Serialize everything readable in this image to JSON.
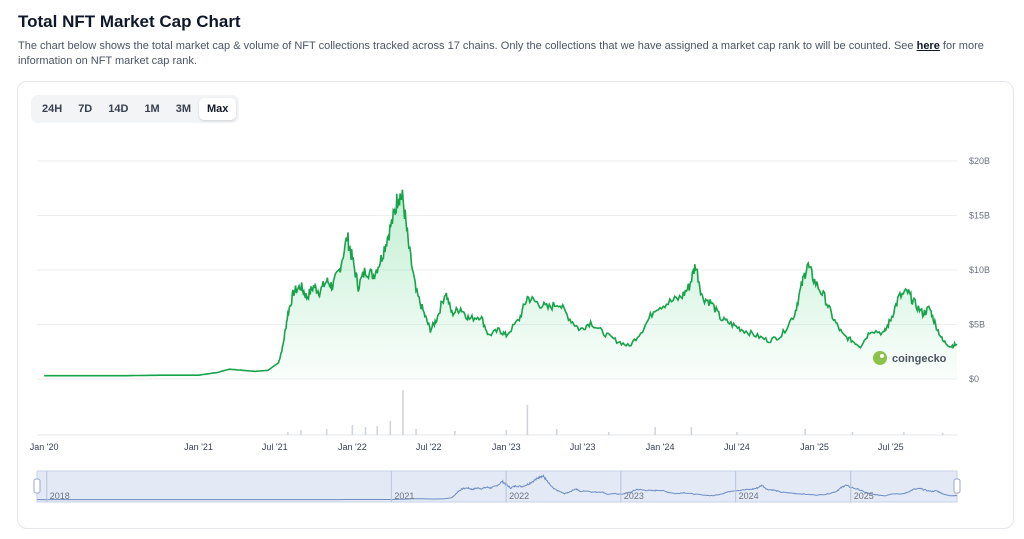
{
  "header": {
    "title": "Total NFT Market Cap Chart",
    "description": "The chart below shows the total market cap & volume of NFT collections tracked across 17 chains. Only the collections that we have assigned a market cap rank to will be counted. See",
    "link_text": "here",
    "description_tail": "for more information on NFT market cap rank."
  },
  "tabs": [
    {
      "label": "24H",
      "active": false
    },
    {
      "label": "7D",
      "active": false
    },
    {
      "label": "14D",
      "active": false
    },
    {
      "label": "1M",
      "active": false
    },
    {
      "label": "3M",
      "active": false
    },
    {
      "label": "Max",
      "active": true
    }
  ],
  "brand": {
    "name": "coingecko",
    "icon": "gecko-logo-icon"
  },
  "colors": {
    "line": "#16a34a",
    "fill": "#22c55e",
    "navigator": "#6d8ec4",
    "navigator_bg": "#e3e9f5"
  },
  "chart_data": {
    "type": "area",
    "series": [
      {
        "values": [
          [
            "2020-01-01",
            0.3
          ],
          [
            "2020-04-01",
            0.3
          ],
          [
            "2020-07-01",
            0.3
          ],
          [
            "2020-10-01",
            0.35
          ],
          [
            "2021-01-01",
            0.35
          ],
          [
            "2021-02-15",
            0.6
          ],
          [
            "2021-03-15",
            0.9
          ],
          [
            "2021-04-15",
            0.8
          ],
          [
            "2021-05-15",
            0.7
          ],
          [
            "2021-06-15",
            0.8
          ],
          [
            "2021-07-10",
            1.5
          ],
          [
            "2021-07-20",
            3
          ],
          [
            "2021-08-01",
            6
          ],
          [
            "2021-08-15",
            8
          ],
          [
            "2021-09-01",
            8.5
          ],
          [
            "2021-09-15",
            7.5
          ],
          [
            "2021-10-01",
            8.5
          ],
          [
            "2021-10-15",
            8
          ],
          [
            "2021-11-01",
            9
          ],
          [
            "2021-11-15",
            8.5
          ],
          [
            "2021-12-01",
            10
          ],
          [
            "2021-12-20",
            13
          ],
          [
            "2022-01-01",
            11
          ],
          [
            "2022-01-15",
            8.5
          ],
          [
            "2022-02-01",
            10
          ],
          [
            "2022-02-20",
            9.5
          ],
          [
            "2022-03-10",
            11
          ],
          [
            "2022-03-25",
            13
          ],
          [
            "2022-04-10",
            15
          ],
          [
            "2022-04-20",
            17
          ],
          [
            "2022-05-01",
            16.5
          ],
          [
            "2022-05-15",
            12
          ],
          [
            "2022-06-01",
            8
          ],
          [
            "2022-06-20",
            6
          ],
          [
            "2022-07-05",
            4.5
          ],
          [
            "2022-07-20",
            5.5
          ],
          [
            "2022-08-10",
            8
          ],
          [
            "2022-08-25",
            6
          ],
          [
            "2022-09-15",
            6.5
          ],
          [
            "2022-10-05",
            5.5
          ],
          [
            "2022-11-01",
            5.8
          ],
          [
            "2022-11-20",
            4
          ],
          [
            "2022-12-15",
            4.5
          ],
          [
            "2023-01-01",
            4
          ],
          [
            "2023-02-01",
            5.5
          ],
          [
            "2023-02-20",
            7.5
          ],
          [
            "2023-03-15",
            7
          ],
          [
            "2023-04-10",
            6.5
          ],
          [
            "2023-05-05",
            7
          ],
          [
            "2023-06-01",
            5.5
          ],
          [
            "2023-06-25",
            4.5
          ],
          [
            "2023-07-20",
            5.2
          ],
          [
            "2023-08-20",
            4.2
          ],
          [
            "2023-09-20",
            3.5
          ],
          [
            "2023-10-20",
            3
          ],
          [
            "2023-11-20",
            4.5
          ],
          [
            "2023-12-20",
            6.5
          ],
          [
            "2024-01-20",
            7
          ],
          [
            "2024-02-20",
            7.5
          ],
          [
            "2024-03-10",
            8.5
          ],
          [
            "2024-03-25",
            10.5
          ],
          [
            "2024-04-10",
            7.5
          ],
          [
            "2024-05-01",
            7
          ],
          [
            "2024-05-25",
            5.5
          ],
          [
            "2024-06-20",
            5
          ],
          [
            "2024-07-15",
            4.5
          ],
          [
            "2024-08-15",
            4
          ],
          [
            "2024-09-15",
            3.5
          ],
          [
            "2024-10-15",
            4
          ],
          [
            "2024-11-15",
            6
          ],
          [
            "2024-12-01",
            8.5
          ],
          [
            "2024-12-15",
            10.5
          ],
          [
            "2025-01-01",
            9
          ],
          [
            "2025-01-25",
            7.5
          ],
          [
            "2025-02-15",
            5.5
          ],
          [
            "2025-03-10",
            4
          ],
          [
            "2025-04-01",
            3.5
          ],
          [
            "2025-04-20",
            3
          ],
          [
            "2025-05-15",
            4.5
          ],
          [
            "2025-06-15",
            4.2
          ],
          [
            "2025-07-01",
            5.5
          ],
          [
            "2025-07-20",
            7.5
          ],
          [
            "2025-08-10",
            8
          ],
          [
            "2025-08-25",
            7
          ],
          [
            "2025-09-15",
            6
          ],
          [
            "2025-10-01",
            6.5
          ],
          [
            "2025-10-15",
            5
          ],
          [
            "2025-11-01",
            3.5
          ],
          [
            "2025-11-20",
            3
          ],
          [
            "2025-12-05",
            3.2
          ]
        ]
      }
    ],
    "volume": [
      [
        "2021-08-01",
        0.3
      ],
      [
        "2021-09-01",
        0.5
      ],
      [
        "2021-11-01",
        0.6
      ],
      [
        "2022-01-01",
        1.0
      ],
      [
        "2022-02-01",
        0.8
      ],
      [
        "2022-03-01",
        0.9
      ],
      [
        "2022-04-01",
        1.4
      ],
      [
        "2022-05-01",
        4.5
      ],
      [
        "2022-06-01",
        0.6
      ],
      [
        "2022-09-01",
        0.4
      ],
      [
        "2023-01-01",
        0.5
      ],
      [
        "2023-02-20",
        3.0
      ],
      [
        "2023-05-01",
        0.6
      ],
      [
        "2023-09-01",
        0.3
      ],
      [
        "2023-12-20",
        0.8
      ],
      [
        "2024-03-15",
        0.8
      ],
      [
        "2024-07-01",
        0.3
      ],
      [
        "2024-12-10",
        0.6
      ],
      [
        "2025-04-01",
        0.3
      ],
      [
        "2025-08-01",
        0.3
      ],
      [
        "2025-11-01",
        0.2
      ]
    ],
    "y_ticks": [
      "$0",
      "$5B",
      "$10B",
      "$15B",
      "$20B"
    ],
    "y_tick_values": [
      0,
      5,
      10,
      15,
      20
    ],
    "ylim": [
      0,
      20
    ],
    "x_ticks": [
      {
        "label": "Jan '20",
        "date": "2020-01-01"
      },
      {
        "label": "Jan '21",
        "date": "2021-01-01"
      },
      {
        "label": "Jul '21",
        "date": "2021-07-01"
      },
      {
        "label": "Jan '22",
        "date": "2022-01-01"
      },
      {
        "label": "Jul '22",
        "date": "2022-07-01"
      },
      {
        "label": "Jan '23",
        "date": "2023-01-01"
      },
      {
        "label": "Jul '23",
        "date": "2023-07-01"
      },
      {
        "label": "Jan '24",
        "date": "2024-01-01"
      },
      {
        "label": "Jul '24",
        "date": "2024-07-01"
      },
      {
        "label": "Jan '25",
        "date": "2025-01-01"
      },
      {
        "label": "Jul '25",
        "date": "2025-07-01"
      }
    ],
    "navigator_ticks": [
      {
        "label": "2018",
        "date": "2018-01-01"
      },
      {
        "label": "2021",
        "date": "2021-01-01"
      },
      {
        "label": "2022",
        "date": "2022-01-01"
      },
      {
        "label": "2023",
        "date": "2023-01-01"
      },
      {
        "label": "2024",
        "date": "2024-01-01"
      },
      {
        "label": "2025",
        "date": "2025-01-01"
      }
    ],
    "grid": true,
    "y_axis_side": "right"
  }
}
